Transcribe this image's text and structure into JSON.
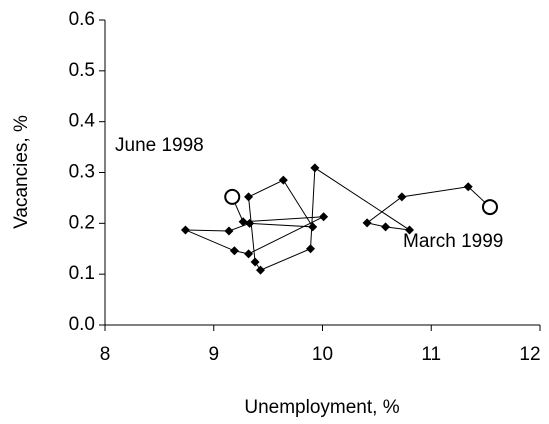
{
  "chart_data": {
    "type": "line",
    "x_label": "Unemployment, %",
    "y_label": "Vacancies, %",
    "series": [
      {
        "color": "#000000",
        "x": [
          9.17,
          9.27,
          10.01,
          9.32,
          9.19,
          8.74,
          9.14,
          9.33,
          9.91,
          9.64,
          9.32,
          9.38,
          9.43,
          9.89,
          9.93,
          10.8,
          10.58,
          10.41,
          10.73,
          11.34,
          11.54
        ],
        "values": [
          0.252,
          0.203,
          0.213,
          0.14,
          0.146,
          0.187,
          0.185,
          0.2,
          0.193,
          0.285,
          0.252,
          0.124,
          0.108,
          0.15,
          0.309,
          0.187,
          0.193,
          0.201,
          0.252,
          0.272,
          0.232
        ]
      }
    ],
    "marker": "diamond",
    "endpoint_marker": "circle",
    "annotations": [
      {
        "text": "June 1998"
      },
      {
        "text": "March 1999"
      }
    ],
    "xlim": [
      8,
      12
    ],
    "xticks": [
      8,
      9,
      10,
      11,
      12
    ],
    "ylim": [
      0,
      0.6
    ],
    "yticks": [
      {
        "value": 0,
        "label": "0.0"
      },
      0.1,
      0.2,
      0.3,
      0.4,
      0.5,
      0.6
    ],
    "grid": false
  }
}
